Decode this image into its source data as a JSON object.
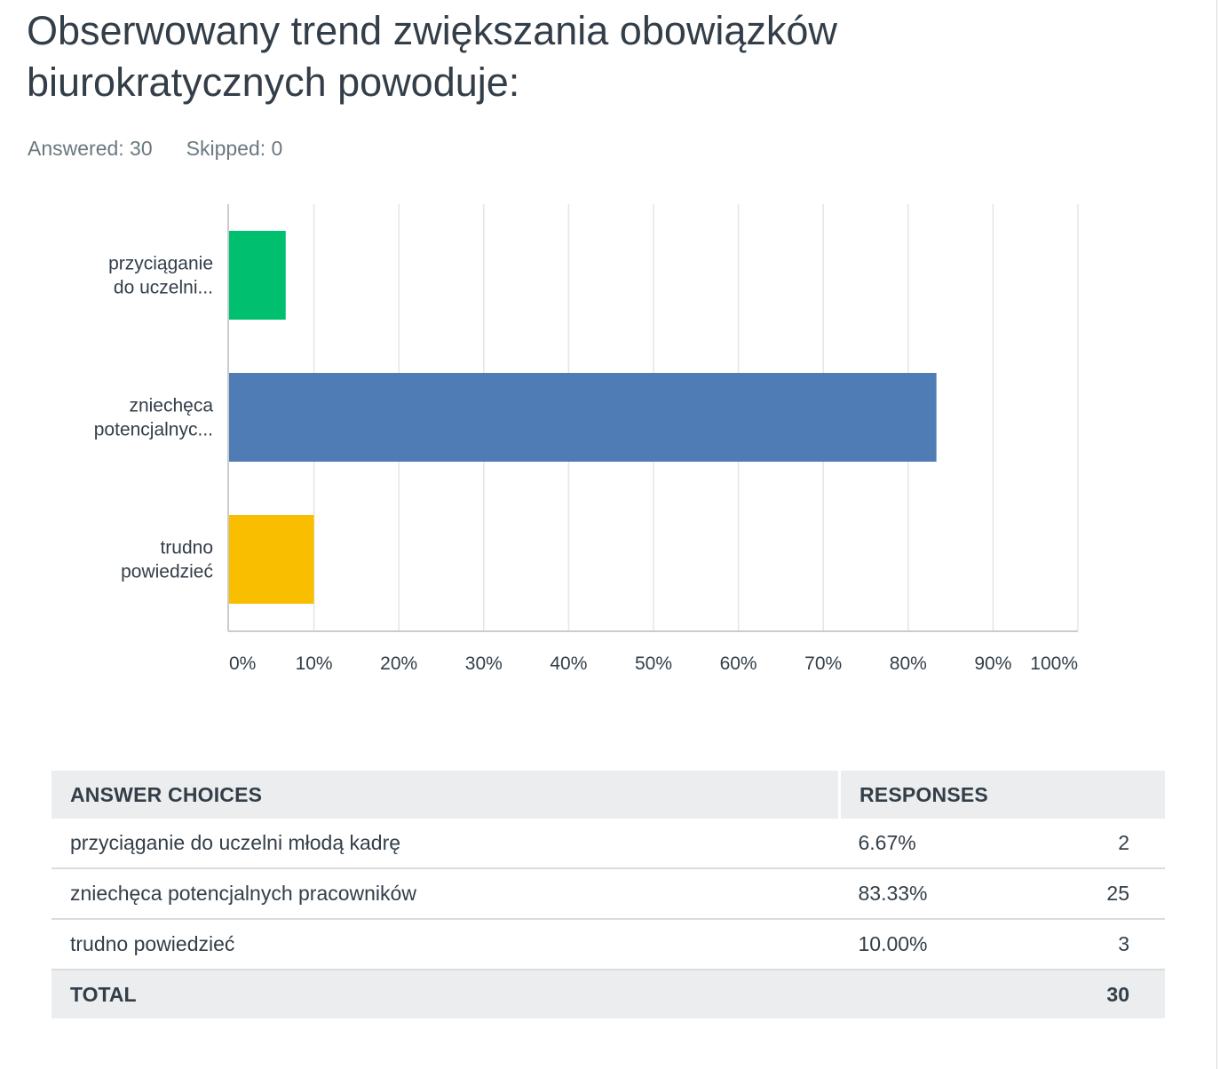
{
  "page_title": "Obserwowany trend zwiększania obowiązków\nbiurokratycznych powoduje:",
  "stats": {
    "answered": "Answered: 30",
    "skipped": "Skipped: 0"
  },
  "colors": {
    "bar_1": "#00bf6f",
    "bar_2": "#507cb6",
    "bar_3": "#f9be00",
    "grid": "#e3e5e7",
    "axis": "#c9cdd0"
  },
  "chart_data": {
    "type": "bar",
    "orientation": "horizontal",
    "categories": [
      [
        "przyciąganie",
        "do uczelni..."
      ],
      [
        "zniechęca",
        "potencjalnyc..."
      ],
      [
        "trudno",
        "powiedzieć"
      ]
    ],
    "values": [
      6.67,
      83.33,
      10.0
    ],
    "value_unit": "%",
    "xlim": [
      0,
      100
    ],
    "x_ticks": [
      "0%",
      "10%",
      "20%",
      "30%",
      "40%",
      "50%",
      "60%",
      "70%",
      "80%",
      "90%",
      "100%"
    ],
    "grid": true,
    "legend": "none"
  },
  "table": {
    "headers": [
      "ANSWER CHOICES",
      "RESPONSES",
      ""
    ],
    "rows": [
      [
        "przyciąganie do uczelni młodą kadrę",
        "6.67%",
        "2"
      ],
      [
        "zniechęca potencjalnych pracowników",
        "83.33%",
        "25"
      ],
      [
        "trudno powiedzieć",
        "10.00%",
        "3"
      ]
    ],
    "total_label": "TOTAL",
    "total_value": "30"
  }
}
